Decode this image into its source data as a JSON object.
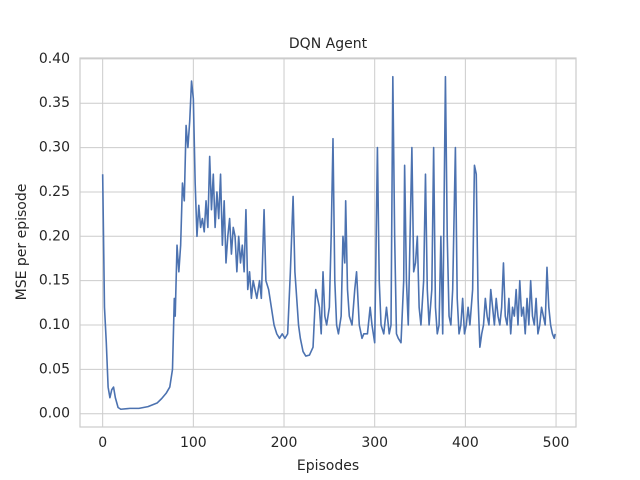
{
  "chart_data": {
    "type": "line",
    "title": "DQN Agent",
    "xlabel": "Episodes",
    "ylabel": "MSE per episode",
    "color": "#4c72b0",
    "grid": true,
    "xlim": [
      -25,
      522
    ],
    "ylim": [
      -0.015,
      0.401
    ],
    "xticks": [
      0,
      100,
      200,
      300,
      400,
      500
    ],
    "yticks": [
      {
        "value": 0,
        "label": "0.00"
      },
      0.05,
      {
        "value": 0.1,
        "label": "0.10"
      },
      0.15,
      {
        "value": 0.2,
        "label": "0.20"
      },
      0.25,
      {
        "value": 0.3,
        "label": "0.30"
      },
      0.35,
      {
        "value": 0.4,
        "label": "0.40"
      }
    ],
    "x": [
      0,
      2,
      4,
      6,
      8,
      10,
      12,
      14,
      17,
      20,
      30,
      40,
      50,
      60,
      65,
      70,
      74,
      77,
      79,
      80,
      82,
      84,
      86,
      88,
      90,
      92,
      94,
      96,
      98,
      100,
      102,
      104,
      106,
      108,
      110,
      112,
      114,
      116,
      118,
      120,
      122,
      124,
      126,
      128,
      130,
      132,
      134,
      136,
      138,
      140,
      142,
      144,
      146,
      148,
      150,
      152,
      154,
      156,
      158,
      160,
      162,
      164,
      166,
      170,
      173,
      175,
      178,
      180,
      183,
      186,
      189,
      192,
      195,
      198,
      201,
      204,
      207,
      210,
      212,
      214,
      216,
      218,
      221,
      224,
      228,
      232,
      235,
      237,
      239,
      241,
      243,
      245,
      247,
      250,
      252,
      254,
      256,
      258,
      260,
      263,
      265,
      267,
      268,
      270,
      272,
      275,
      278,
      280,
      283,
      286,
      288,
      292,
      295,
      297,
      300,
      303,
      305,
      307,
      310,
      313,
      316,
      318,
      320,
      322,
      324,
      326,
      329,
      332,
      333,
      335,
      337,
      339,
      341,
      343,
      345,
      347,
      349,
      351,
      354,
      356,
      358,
      360,
      363,
      365,
      367,
      369,
      371,
      373,
      375,
      378,
      380,
      382,
      384,
      386,
      389,
      391,
      393,
      395,
      397,
      399,
      401,
      403,
      405,
      408,
      410,
      412,
      414,
      416,
      418,
      420,
      422,
      424,
      426,
      428,
      430,
      432,
      434,
      436,
      438,
      440,
      442,
      444,
      446,
      448,
      450,
      452,
      454,
      456,
      458,
      460,
      462,
      464,
      466,
      468,
      470,
      472,
      474,
      476,
      478,
      480,
      482,
      484,
      486,
      488,
      490,
      492,
      494,
      496,
      498,
      499
    ],
    "values": [
      0.27,
      0.12,
      0.08,
      0.03,
      0.018,
      0.027,
      0.03,
      0.018,
      0.007,
      0.005,
      0.006,
      0.006,
      0.008,
      0.012,
      0.017,
      0.023,
      0.03,
      0.05,
      0.13,
      0.11,
      0.19,
      0.16,
      0.19,
      0.26,
      0.24,
      0.325,
      0.3,
      0.33,
      0.375,
      0.355,
      0.26,
      0.2,
      0.235,
      0.21,
      0.22,
      0.205,
      0.24,
      0.21,
      0.29,
      0.23,
      0.27,
      0.21,
      0.25,
      0.22,
      0.27,
      0.19,
      0.24,
      0.17,
      0.2,
      0.22,
      0.18,
      0.21,
      0.2,
      0.16,
      0.2,
      0.17,
      0.19,
      0.16,
      0.23,
      0.14,
      0.16,
      0.13,
      0.15,
      0.13,
      0.15,
      0.13,
      0.23,
      0.15,
      0.14,
      0.12,
      0.1,
      0.09,
      0.085,
      0.09,
      0.085,
      0.09,
      0.16,
      0.245,
      0.16,
      0.13,
      0.1,
      0.085,
      0.07,
      0.065,
      0.066,
      0.075,
      0.14,
      0.13,
      0.12,
      0.09,
      0.16,
      0.11,
      0.1,
      0.12,
      0.2,
      0.31,
      0.15,
      0.1,
      0.09,
      0.11,
      0.2,
      0.17,
      0.24,
      0.14,
      0.11,
      0.1,
      0.14,
      0.16,
      0.1,
      0.085,
      0.09,
      0.09,
      0.12,
      0.1,
      0.08,
      0.3,
      0.15,
      0.1,
      0.09,
      0.12,
      0.09,
      0.1,
      0.38,
      0.2,
      0.09,
      0.085,
      0.08,
      0.15,
      0.28,
      0.15,
      0.1,
      0.2,
      0.3,
      0.16,
      0.17,
      0.2,
      0.12,
      0.1,
      0.15,
      0.27,
      0.14,
      0.1,
      0.14,
      0.3,
      0.12,
      0.09,
      0.1,
      0.2,
      0.09,
      0.38,
      0.2,
      0.11,
      0.1,
      0.14,
      0.3,
      0.13,
      0.09,
      0.1,
      0.13,
      0.09,
      0.1,
      0.12,
      0.1,
      0.14,
      0.28,
      0.27,
      0.13,
      0.075,
      0.09,
      0.1,
      0.13,
      0.11,
      0.1,
      0.14,
      0.12,
      0.1,
      0.13,
      0.11,
      0.1,
      0.12,
      0.17,
      0.11,
      0.1,
      0.13,
      0.09,
      0.12,
      0.11,
      0.14,
      0.1,
      0.15,
      0.11,
      0.12,
      0.09,
      0.13,
      0.1,
      0.15,
      0.11,
      0.1,
      0.13,
      0.09,
      0.1,
      0.12,
      0.11,
      0.1,
      0.165,
      0.12,
      0.1,
      0.09,
      0.085,
      0.09
    ]
  }
}
